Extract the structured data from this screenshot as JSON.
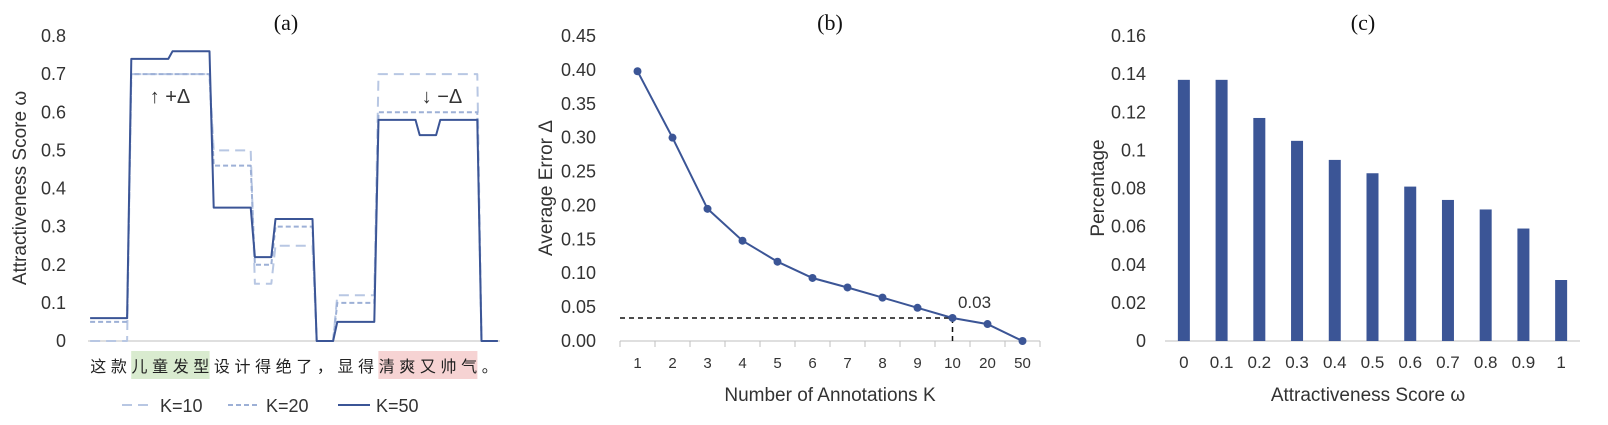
{
  "colors": {
    "dark": "#3B5596",
    "mid": "#9DB0D6",
    "light": "#B8C7E3",
    "green_highlight": "#D9EBCF",
    "red_highlight": "#F6D3D3",
    "axis": "#BFBFBF",
    "text": "#333333"
  },
  "chart_data": [
    {
      "panel": "(a)",
      "type": "line",
      "title": "(a)",
      "xlabel": "",
      "ylabel": "Attractiveness Score ω",
      "ylim": [
        0,
        0.8
      ],
      "yticks": [
        "0",
        "0.1",
        "0.2",
        "0.3",
        "0.4",
        "0.5",
        "0.6",
        "0.7",
        "0.8"
      ],
      "categories": [
        "这",
        "款",
        "儿",
        "童",
        "发",
        "型",
        "设",
        "计",
        "得",
        "绝",
        "了",
        "，",
        "显",
        "得",
        "清",
        "爽",
        "又",
        "帅",
        "气",
        "。"
      ],
      "highlight_green": [
        2,
        3,
        4,
        5
      ],
      "highlight_red": [
        14,
        15,
        16,
        17,
        18
      ],
      "series": [
        {
          "name": "K=10",
          "style": "dashed-light",
          "values": [
            0.0,
            0.0,
            0.7,
            0.7,
            0.7,
            0.7,
            0.5,
            0.5,
            0.15,
            0.25,
            0.25,
            0.0,
            0.12,
            0.12,
            0.7,
            0.7,
            0.7,
            0.7,
            0.7,
            0.0
          ]
        },
        {
          "name": "K=20",
          "style": "dashed-mid",
          "values": [
            0.05,
            0.05,
            0.7,
            0.7,
            0.7,
            0.7,
            0.46,
            0.46,
            0.2,
            0.3,
            0.3,
            0.0,
            0.1,
            0.1,
            0.6,
            0.6,
            0.6,
            0.6,
            0.6,
            0.0
          ]
        },
        {
          "name": "K=50",
          "style": "solid-dark",
          "values": [
            0.06,
            0.06,
            0.74,
            0.74,
            0.76,
            0.76,
            0.35,
            0.35,
            0.22,
            0.32,
            0.32,
            0.0,
            0.05,
            0.05,
            0.58,
            0.58,
            0.54,
            0.58,
            0.58,
            0.0
          ]
        }
      ],
      "annotations": [
        "↑ +Δ",
        "↓ −Δ"
      ],
      "legend": "bottom"
    },
    {
      "panel": "(b)",
      "type": "line",
      "title": "(b)",
      "xlabel": "Number of Annotations K",
      "ylabel": "Average Error Δ",
      "ylim": [
        0,
        0.45
      ],
      "yticks": [
        "0.00",
        "0.05",
        "0.10",
        "0.15",
        "0.20",
        "0.25",
        "0.30",
        "0.35",
        "0.40",
        "0.45"
      ],
      "categories": [
        "1",
        "2",
        "3",
        "4",
        "5",
        "6",
        "7",
        "8",
        "9",
        "10",
        "20",
        "50"
      ],
      "series": [
        {
          "values": [
            0.398,
            0.3,
            0.195,
            0.148,
            0.117,
            0.093,
            0.079,
            0.064,
            0.049,
            0.034,
            0.025,
            0.0
          ]
        }
      ],
      "reference": {
        "x_category": "10",
        "y": 0.034,
        "label": "0.03"
      }
    },
    {
      "panel": "(c)",
      "type": "bar",
      "title": "(c)",
      "xlabel": "Attractiveness Score ω",
      "ylabel": "Percentage",
      "ylim": [
        0,
        0.16
      ],
      "yticks": [
        "0",
        "0.02",
        "0.04",
        "0.06",
        "0.08",
        "0.1",
        "0.12",
        "0.14",
        "0.16"
      ],
      "categories": [
        "0",
        "0.1",
        "0.2",
        "0.3",
        "0.4",
        "0.5",
        "0.6",
        "0.7",
        "0.8",
        "0.9",
        "1"
      ],
      "values": [
        0.137,
        0.137,
        0.117,
        0.105,
        0.095,
        0.088,
        0.081,
        0.074,
        0.069,
        0.059,
        0.032
      ]
    }
  ]
}
